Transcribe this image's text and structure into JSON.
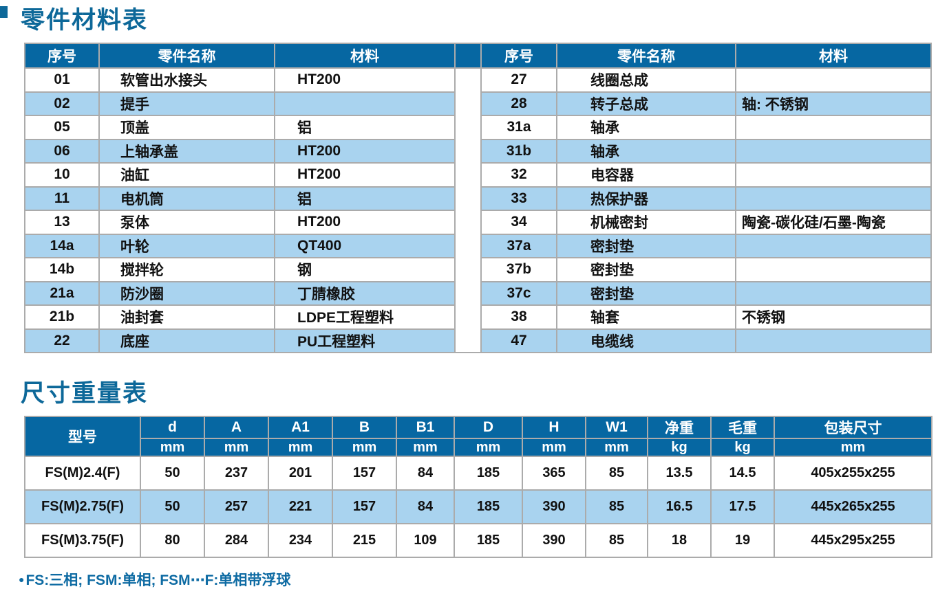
{
  "page": {
    "title_parts": "零件材料表",
    "title_size": "尺寸重量表",
    "footnote": {
      "bullet": "●",
      "text": "FS:三相; FSM:单相; FSM⋯F:单相带浮球"
    }
  },
  "parts_table": {
    "headers": [
      "序号",
      "零件名称",
      "材料"
    ],
    "left_rows": [
      [
        "01",
        "软管出水接头",
        "HT200"
      ],
      [
        "02",
        "提手",
        ""
      ],
      [
        "05",
        "顶盖",
        "铝"
      ],
      [
        "06",
        "上轴承盖",
        "HT200"
      ],
      [
        "10",
        "油缸",
        "HT200"
      ],
      [
        "11",
        "电机筒",
        "铝"
      ],
      [
        "13",
        "泵体",
        "HT200"
      ],
      [
        "14a",
        "叶轮",
        "QT400"
      ],
      [
        "14b",
        "搅拌轮",
        "钢"
      ],
      [
        "21a",
        "防沙圈",
        "丁腈橡胶"
      ],
      [
        "21b",
        "油封套",
        "LDPE工程塑料"
      ],
      [
        "22",
        "底座",
        "PU工程塑料"
      ]
    ],
    "right_rows": [
      [
        "27",
        "线圈总成",
        ""
      ],
      [
        "28",
        "转子总成",
        "轴: 不锈钢"
      ],
      [
        "31a",
        "轴承",
        ""
      ],
      [
        "31b",
        "轴承",
        ""
      ],
      [
        "32",
        "电容器",
        ""
      ],
      [
        "33",
        "热保护器",
        ""
      ],
      [
        "34",
        "机械密封",
        "陶瓷-碳化硅/石墨-陶瓷"
      ],
      [
        "37a",
        "密封垫",
        ""
      ],
      [
        "37b",
        "密封垫",
        ""
      ],
      [
        "37c",
        "密封垫",
        ""
      ],
      [
        "38",
        "轴套",
        "不锈钢"
      ],
      [
        "47",
        "电缆线",
        ""
      ]
    ]
  },
  "size_table": {
    "model_header": "型号",
    "columns": [
      {
        "label": "d",
        "unit": "mm"
      },
      {
        "label": "A",
        "unit": "mm"
      },
      {
        "label": "A1",
        "unit": "mm"
      },
      {
        "label": "B",
        "unit": "mm"
      },
      {
        "label": "B1",
        "unit": "mm"
      },
      {
        "label": "D",
        "unit": "mm"
      },
      {
        "label": "H",
        "unit": "mm"
      },
      {
        "label": "W1",
        "unit": "mm"
      },
      {
        "label": "净重",
        "unit": "kg"
      },
      {
        "label": "毛重",
        "unit": "kg"
      },
      {
        "label": "包装尺寸",
        "unit": "mm"
      }
    ],
    "rows": [
      {
        "model": "FS(M)2.4(F)",
        "values": [
          "50",
          "237",
          "201",
          "157",
          "84",
          "185",
          "365",
          "85",
          "13.5",
          "14.5",
          "405x255x255"
        ]
      },
      {
        "model": "FS(M)2.75(F)",
        "values": [
          "50",
          "257",
          "221",
          "157",
          "84",
          "185",
          "390",
          "85",
          "16.5",
          "17.5",
          "445x265x255"
        ]
      },
      {
        "model": "FS(M)3.75(F)",
        "values": [
          "80",
          "284",
          "234",
          "215",
          "109",
          "185",
          "390",
          "85",
          "18",
          "19",
          "445x295x255"
        ]
      }
    ]
  },
  "colors": {
    "header_blue": "#0667a2",
    "row_light_blue": "#a9d3ef",
    "title_blue": "#0d6899",
    "footnote_blue": "#0e6ba3",
    "border_gray": "#ababab"
  }
}
